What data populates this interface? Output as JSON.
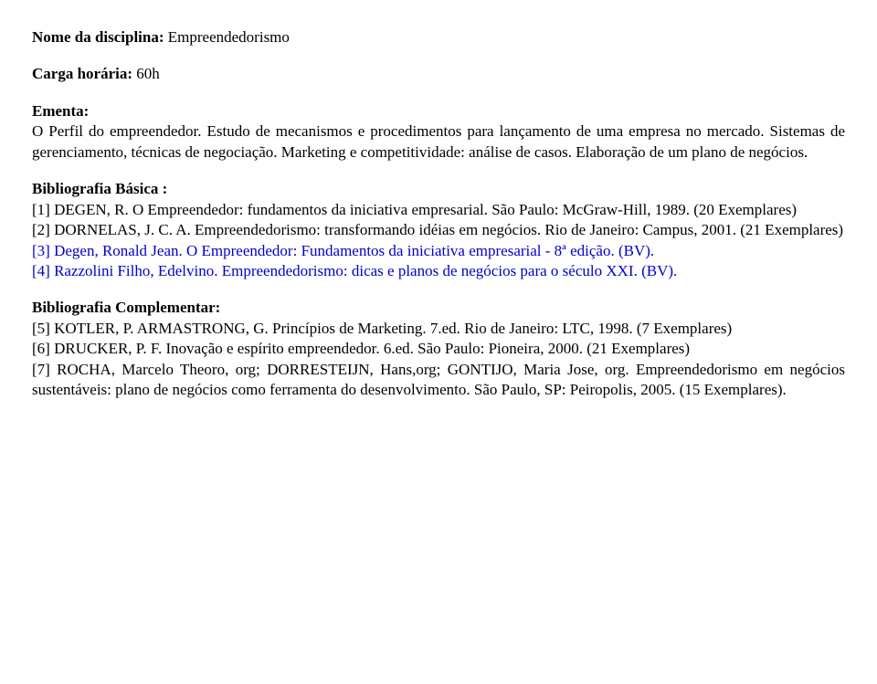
{
  "doc": {
    "discipline_label": "Nome da disciplina:",
    "discipline_value": "Empreendedorismo",
    "carga_label": "Carga horária:",
    "carga_value": "60h",
    "ementa_label": "Ementa:",
    "ementa_text": "O Perfil do empreendedor. Estudo de mecanismos e procedimentos para lançamento de uma empresa no mercado. Sistemas de gerenciamento, técnicas de negociação. Marketing e competitividade: análise de casos. Elaboração de um plano de negócios.",
    "biblio_basica_label": "Bibliografia Básica :",
    "biblio_basica_items": [
      "[1] DEGEN, R. O Empreendedor: fundamentos da iniciativa empresarial. São Paulo: McGraw-Hill, 1989. (20 Exemplares)",
      "[2] DORNELAS, J. C. A. Empreendedorismo: transformando idéias em negócios. Rio de Janeiro: Campus, 2001. (21 Exemplares)"
    ],
    "biblio_basica_blue_items": [
      "[3] Degen, Ronald Jean. O Empreendedor: Fundamentos da iniciativa empresarial - 8ª edição. (BV).",
      "[4] Razzolini Filho, Edelvino. Empreendedorismo: dicas e planos de negócios para o século XXI. (BV)."
    ],
    "biblio_compl_label": "Bibliografia Complementar:",
    "biblio_compl_items": [
      "[5] KOTLER, P. ARMASTRONG, G. Princípios de Marketing. 7.ed. Rio de Janeiro: LTC, 1998. (7 Exemplares)",
      "[6] DRUCKER, P. F. Inovação e espírito empreendedor. 6.ed. São Paulo: Pioneira, 2000. (21 Exemplares)",
      "[7] ROCHA, Marcelo Theoro, org; DORRESTEIJN, Hans,org; GONTIJO, Maria Jose, org. Empreendedorismo em negócios sustentáveis: plano de negócios como ferramenta do desenvolvimento. São Paulo, SP: Peiropolis, 2005. (15 Exemplares)."
    ],
    "colors": {
      "text": "#000000",
      "link": "#0000cc",
      "background": "#ffffff"
    },
    "typography": {
      "font_family": "Times New Roman",
      "font_size_pt": 13,
      "line_height": 1.32,
      "bold_weight": 700
    }
  }
}
